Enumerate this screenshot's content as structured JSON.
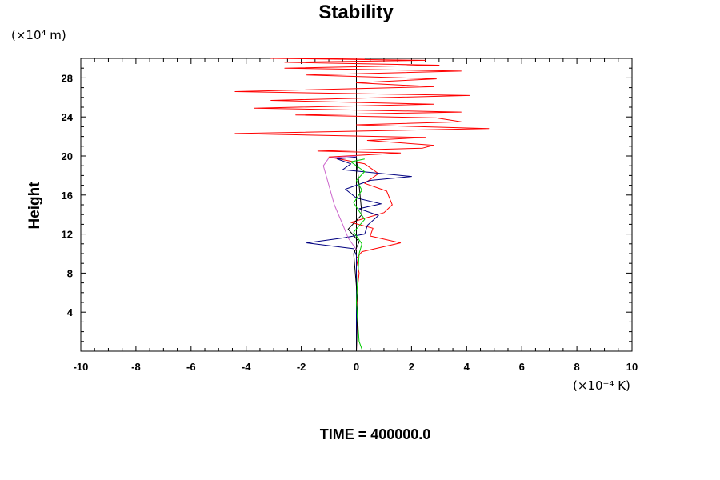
{
  "chart_data": {
    "type": "line",
    "title": "Stability",
    "ylabel": "Height",
    "xlabel": "",
    "y_unit": "(×10⁴ m)",
    "x_unit": "(×10⁻⁴ K)",
    "xlim": [
      -10,
      10
    ],
    "ylim": [
      0,
      30
    ],
    "x_ticks": [
      -10,
      -8,
      -6,
      -4,
      -2,
      0,
      2,
      4,
      6,
      8,
      10
    ],
    "y_ticks": [
      4,
      8,
      12,
      16,
      20,
      24,
      28
    ],
    "grid": false,
    "legend": "none",
    "footer": "TIME = 400000.0",
    "series": [
      {
        "color": "#ff0000",
        "x": [
          0.0,
          0.02,
          0.05,
          0.02,
          0.1,
          0.0,
          0.2,
          1.6,
          0.5,
          0.6,
          -0.2,
          1.0,
          1.3,
          1.1,
          0.3,
          0.8,
          0.3,
          -1.0,
          1.6,
          -1.4,
          2.4,
          2.8,
          0.4,
          2.5,
          -4.4,
          4.8,
          0.0,
          3.8,
          2.9,
          -2.2,
          3.8,
          -3.7,
          2.8,
          -3.1,
          4.1,
          -4.4,
          2.8,
          0.0,
          2.9,
          -1.8,
          3.8,
          -2.6,
          3.0,
          -2.6,
          2.5,
          -3.1,
          0.3
        ],
        "y": [
          0.0,
          2.0,
          4.0,
          6.0,
          8.0,
          9.5,
          10.2,
          11.1,
          11.8,
          12.6,
          13.2,
          14.2,
          15.0,
          16.4,
          17.2,
          18.2,
          19.2,
          19.9,
          20.3,
          20.5,
          20.8,
          21.1,
          21.6,
          21.9,
          22.3,
          22.8,
          23.2,
          23.5,
          23.9,
          24.2,
          24.5,
          24.9,
          25.3,
          25.7,
          26.2,
          26.6,
          27.1,
          27.5,
          27.9,
          28.3,
          28.7,
          29.0,
          29.3,
          29.6,
          29.8,
          30.0,
          30.0
        ]
      },
      {
        "color": "#000080",
        "x": [
          0.0,
          0.0,
          -0.1,
          -1.8,
          -0.5,
          0.3,
          0.4,
          0.8,
          0.1,
          0.9,
          0.0,
          -0.4,
          0.5,
          2.0,
          -0.5,
          -0.2,
          -0.7,
          0.0
        ],
        "y": [
          0.0,
          9.8,
          10.5,
          11.1,
          11.6,
          12.0,
          12.9,
          13.9,
          14.6,
          15.1,
          15.7,
          16.6,
          17.5,
          17.9,
          18.6,
          19.2,
          19.7,
          19.9
        ]
      },
      {
        "color": "#000000",
        "x": [
          0.0,
          0.05,
          -0.1,
          0.1,
          -0.3,
          0.2,
          0.1,
          0.0
        ],
        "y": [
          0.0,
          5.0,
          10.0,
          11.2,
          12.5,
          14.0,
          17.0,
          19.8
        ]
      },
      {
        "color": "#cc66cc",
        "x": [
          0.0,
          -0.3,
          -0.5,
          -0.8,
          -1.0,
          -1.2,
          -1.0,
          0.0
        ],
        "y": [
          10.4,
          11.6,
          13.0,
          15.0,
          17.0,
          19.0,
          19.8,
          20.0
        ]
      },
      {
        "color": "#00cc00",
        "x": [
          0.2,
          0.1,
          0.0,
          0.1,
          0.2,
          -0.1,
          0.3,
          -0.1,
          0.2,
          0.0,
          0.3,
          -0.2,
          0.3
        ],
        "y": [
          0.2,
          1.0,
          5.0,
          10.0,
          11.0,
          12.2,
          13.5,
          15.2,
          16.5,
          17.5,
          18.4,
          19.4,
          19.7
        ]
      }
    ]
  }
}
